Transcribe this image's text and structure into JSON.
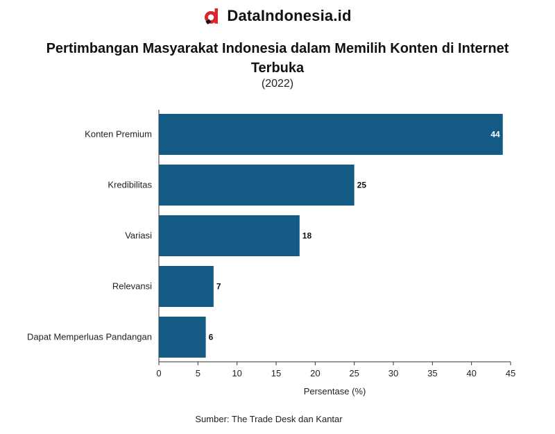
{
  "brand": {
    "name": "DataIndonesia.id",
    "logo_icon": "dataindonesia-logo-icon",
    "logo_color": "#d7262e"
  },
  "chart_data": {
    "type": "bar",
    "orientation": "horizontal",
    "title": "Pertimbangan Masyarakat Indonesia dalam Memilih Konten di Internet Terbuka",
    "subtitle": "(2022)",
    "categories": [
      "Konten Premium",
      "Kredibilitas",
      "Variasi",
      "Relevansi",
      "Dapat Memperluas Pandangan"
    ],
    "values": [
      44,
      25,
      18,
      7,
      6
    ],
    "xlabel": "Persentase (%)",
    "ylabel": "",
    "xlim": [
      0,
      45
    ],
    "xticks": [
      0,
      5,
      10,
      15,
      20,
      25,
      30,
      35,
      40,
      45
    ],
    "bar_color": "#135a85",
    "grid": false
  },
  "source": "Sumber: The Trade Desk dan Kantar"
}
